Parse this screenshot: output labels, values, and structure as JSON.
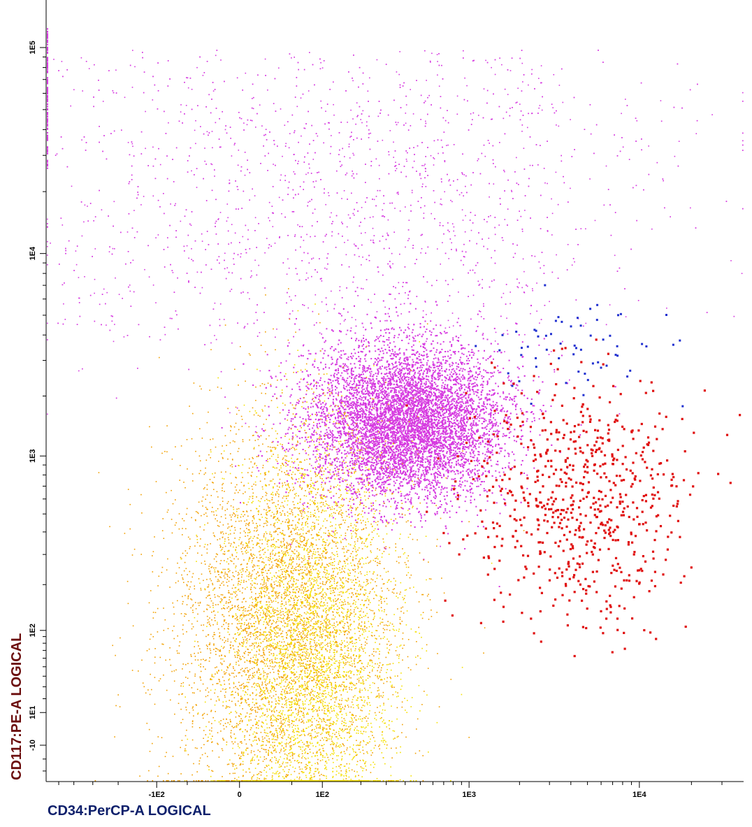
{
  "chart_data": {
    "type": "scatter",
    "title": "",
    "xlabel": "CD34:PerCP-A LOGICAL",
    "ylabel": "CD117:PE-A LOGICAL",
    "x_scale": "logicle",
    "y_scale": "logicle",
    "xlim": [
      -600,
      40000
    ],
    "ylim": [
      -40,
      170000
    ],
    "x_tick_labels": [
      "-1E2",
      "0",
      "1E2",
      "1E3",
      "1E4"
    ],
    "x_tick_values": [
      -100,
      0,
      100,
      1000,
      10000
    ],
    "y_tick_labels": [
      "-10",
      "1E1",
      "1E2",
      "1E3",
      "1E4",
      "1E5"
    ],
    "y_tick_values": [
      -10,
      10,
      100,
      1000,
      10000,
      100000
    ],
    "grid": false,
    "legend": "none",
    "populations": [
      {
        "color": "#d63ae0",
        "role": "dense main cluster",
        "x_center": 400,
        "y_center": 1500,
        "point_count": 9000
      },
      {
        "color": "#d63ae0",
        "role": "diffuse upper spread",
        "x_center": 300,
        "y_center": 20000,
        "point_count": 2600
      },
      {
        "color": "#d63ae0",
        "role": "pile-up at top of x-axis min",
        "x_center": -600,
        "y_center": 60000,
        "point_count": 120
      },
      {
        "color": "#f2a000",
        "role": "lower cluster (orange)",
        "x_center": 40,
        "y_center": 120,
        "point_count": 5000
      },
      {
        "color": "#f5e000",
        "role": "lower cluster (yellow)",
        "x_center": 80,
        "y_center": 60,
        "point_count": 3500
      },
      {
        "color": "#2030d0",
        "role": "scattered blue events",
        "x_center": 5000,
        "y_center": 3500,
        "point_count": 60
      },
      {
        "color": "#e01010",
        "role": "CD34+ cluster",
        "x_center": 4500,
        "y_center": 600,
        "point_count": 700
      }
    ]
  }
}
